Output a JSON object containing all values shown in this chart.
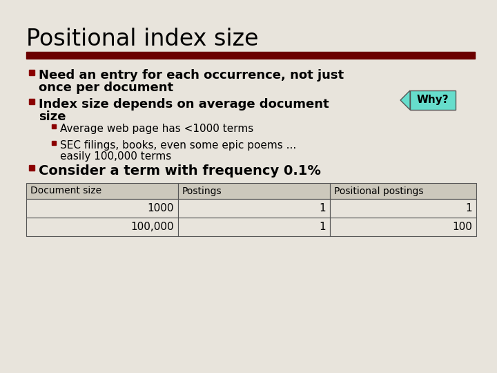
{
  "title": "Positional index size",
  "bg_color": "#e8e4dc",
  "title_color": "#000000",
  "title_font_size": 24,
  "bar_color": "#6b0000",
  "bullet_color": "#8b0000",
  "bullet1_line1": "Need an entry for each occurrence, not just",
  "bullet1_line2": "once per document",
  "bullet2_line1": "Index size depends on average document",
  "bullet2_line2": "size",
  "sub_bullet1": "Average web page has <1000 terms",
  "sub_bullet2_line1": "SEC filings, books, even some epic poems ...",
  "sub_bullet2_line2": "easily 100,000 terms",
  "bullet3": "Consider a term with frequency 0.1%",
  "why_bg": "#66ddcc",
  "why_text": "Why?",
  "table_header": [
    "Document size",
    "Postings",
    "Positional postings"
  ],
  "table_row1": [
    "1000",
    "1",
    "1"
  ],
  "table_row2": [
    "100,000",
    "1",
    "100"
  ],
  "main_font": "DejaVu Sans",
  "text_font_size": 13,
  "sub_font_size": 11,
  "bullet3_font_size": 14
}
